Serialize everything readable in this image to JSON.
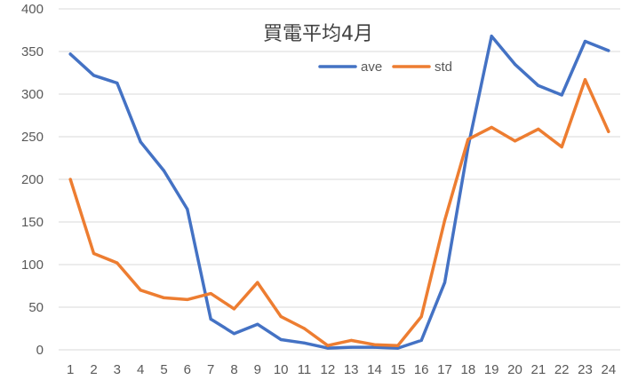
{
  "chart_data": {
    "type": "line",
    "title": "買電平均4月",
    "xlabel": "",
    "ylabel": "",
    "categories": [
      "1",
      "2",
      "3",
      "4",
      "5",
      "6",
      "7",
      "8",
      "9",
      "10",
      "11",
      "12",
      "13",
      "14",
      "15",
      "16",
      "17",
      "18",
      "19",
      "20",
      "21",
      "22",
      "23",
      "24"
    ],
    "ylim": [
      0,
      400
    ],
    "yticks": [
      0,
      50,
      100,
      150,
      200,
      250,
      300,
      350,
      400
    ],
    "grid": true,
    "legend_position": "top-center",
    "series": [
      {
        "name": "ave",
        "color": "#4472C4",
        "values": [
          347,
          322,
          313,
          244,
          210,
          165,
          36,
          19,
          30,
          12,
          8,
          2,
          3,
          3,
          2,
          11,
          79,
          238,
          368,
          335,
          310,
          299,
          362,
          351
        ]
      },
      {
        "name": "std",
        "color": "#ED7D31",
        "values": [
          200,
          113,
          102,
          70,
          61,
          59,
          66,
          48,
          79,
          39,
          25,
          5,
          11,
          6,
          5,
          39,
          152,
          247,
          261,
          245,
          259,
          238,
          317,
          256
        ]
      }
    ]
  }
}
